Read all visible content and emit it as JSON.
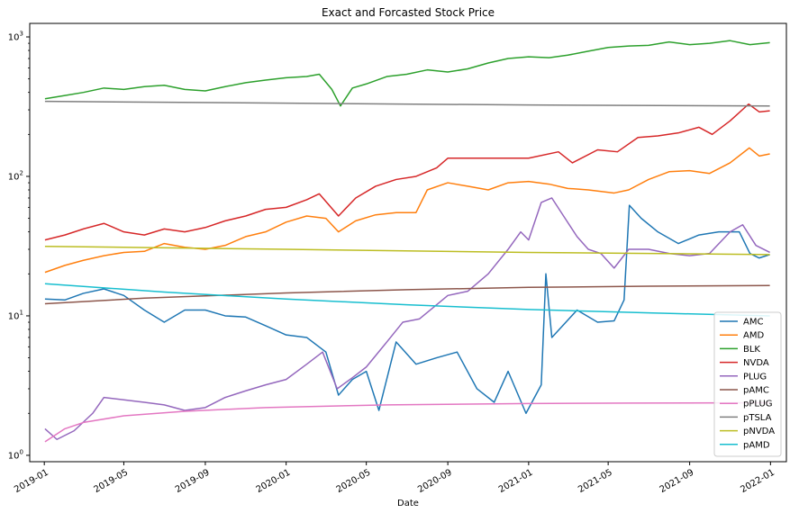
{
  "chart_data": {
    "type": "line",
    "title": "Exact and Forcasted Stock Price",
    "xlabel": "Date",
    "ylabel": "",
    "yscale": "log",
    "xlim": [
      "2018-12-10",
      "2022-01-25"
    ],
    "ylim": [
      0.9,
      1250
    ],
    "grid": false,
    "legend_placement": "bottom-right",
    "x_ticks": [
      "2019-01",
      "2019-05",
      "2019-09",
      "2020-01",
      "2020-05",
      "2020-09",
      "2021-01",
      "2021-05",
      "2021-09",
      "2022-01"
    ],
    "y_ticks": [
      {
        "value": 1,
        "base": "10",
        "exp": "0"
      },
      {
        "value": 10,
        "base": "10",
        "exp": "1"
      },
      {
        "value": 100,
        "base": "10",
        "exp": "2"
      },
      {
        "value": 1000,
        "base": "10",
        "exp": "3"
      }
    ],
    "series": [
      {
        "name": "AMC",
        "color": "#1f77b4",
        "points": [
          [
            "2019-01-02",
            13.2
          ],
          [
            "2019-02-01",
            13.0
          ],
          [
            "2019-03-01",
            14.5
          ],
          [
            "2019-04-01",
            15.6
          ],
          [
            "2019-05-01",
            14.0
          ],
          [
            "2019-06-01",
            11.0
          ],
          [
            "2019-07-01",
            9.0
          ],
          [
            "2019-08-01",
            11.0
          ],
          [
            "2019-09-01",
            11.0
          ],
          [
            "2019-10-01",
            10.0
          ],
          [
            "2019-11-01",
            9.8
          ],
          [
            "2019-12-01",
            8.5
          ],
          [
            "2020-01-01",
            7.3
          ],
          [
            "2020-02-01",
            7.0
          ],
          [
            "2020-03-01",
            5.5
          ],
          [
            "2020-03-20",
            2.7
          ],
          [
            "2020-04-10",
            3.5
          ],
          [
            "2020-05-01",
            4.0
          ],
          [
            "2020-05-20",
            2.1
          ],
          [
            "2020-06-15",
            6.5
          ],
          [
            "2020-07-15",
            4.5
          ],
          [
            "2020-08-15",
            5.0
          ],
          [
            "2020-09-15",
            5.5
          ],
          [
            "2020-10-15",
            3.0
          ],
          [
            "2020-11-10",
            2.4
          ],
          [
            "2020-12-01",
            4.0
          ],
          [
            "2020-12-28",
            2.0
          ],
          [
            "2021-01-20",
            3.2
          ],
          [
            "2021-01-27",
            20.0
          ],
          [
            "2021-02-05",
            7.0
          ],
          [
            "2021-03-15",
            11.0
          ],
          [
            "2021-04-15",
            9.0
          ],
          [
            "2021-05-10",
            9.2
          ],
          [
            "2021-05-25",
            13.0
          ],
          [
            "2021-06-02",
            62.0
          ],
          [
            "2021-06-20",
            50.0
          ],
          [
            "2021-07-15",
            40.0
          ],
          [
            "2021-08-15",
            33.0
          ],
          [
            "2021-09-15",
            38.0
          ],
          [
            "2021-10-15",
            40.0
          ],
          [
            "2021-11-15",
            40.0
          ],
          [
            "2021-12-01",
            28.0
          ],
          [
            "2021-12-15",
            26.0
          ],
          [
            "2021-12-31",
            27.5
          ]
        ]
      },
      {
        "name": "AMD",
        "color": "#ff7f0e",
        "points": [
          [
            "2019-01-02",
            20.5
          ],
          [
            "2019-02-01",
            23.0
          ],
          [
            "2019-03-01",
            25.0
          ],
          [
            "2019-04-01",
            27.0
          ],
          [
            "2019-05-01",
            28.5
          ],
          [
            "2019-06-01",
            29.0
          ],
          [
            "2019-07-01",
            33.0
          ],
          [
            "2019-08-01",
            31.0
          ],
          [
            "2019-09-01",
            30.0
          ],
          [
            "2019-10-01",
            32.0
          ],
          [
            "2019-11-01",
            37.0
          ],
          [
            "2019-12-01",
            40.0
          ],
          [
            "2020-01-01",
            47.0
          ],
          [
            "2020-02-01",
            52.0
          ],
          [
            "2020-03-01",
            50.0
          ],
          [
            "2020-03-20",
            40.0
          ],
          [
            "2020-04-15",
            48.0
          ],
          [
            "2020-05-15",
            53.0
          ],
          [
            "2020-06-15",
            55.0
          ],
          [
            "2020-07-15",
            55.0
          ],
          [
            "2020-08-01",
            80.0
          ],
          [
            "2020-09-01",
            90.0
          ],
          [
            "2020-10-01",
            85.0
          ],
          [
            "2020-11-01",
            80.0
          ],
          [
            "2020-12-01",
            90.0
          ],
          [
            "2021-01-01",
            92.0
          ],
          [
            "2021-02-01",
            88.0
          ],
          [
            "2021-03-01",
            82.0
          ],
          [
            "2021-04-01",
            80.0
          ],
          [
            "2021-05-10",
            76.0
          ],
          [
            "2021-06-01",
            80.0
          ],
          [
            "2021-07-01",
            95.0
          ],
          [
            "2021-08-01",
            108.0
          ],
          [
            "2021-09-01",
            110.0
          ],
          [
            "2021-10-01",
            105.0
          ],
          [
            "2021-11-01",
            125.0
          ],
          [
            "2021-11-30",
            160.0
          ],
          [
            "2021-12-15",
            140.0
          ],
          [
            "2021-12-31",
            145.0
          ]
        ]
      },
      {
        "name": "BLK",
        "color": "#2ca02c",
        "points": [
          [
            "2019-01-02",
            360.0
          ],
          [
            "2019-02-01",
            380.0
          ],
          [
            "2019-03-01",
            400.0
          ],
          [
            "2019-04-01",
            430.0
          ],
          [
            "2019-05-01",
            420.0
          ],
          [
            "2019-06-01",
            440.0
          ],
          [
            "2019-07-01",
            450.0
          ],
          [
            "2019-08-01",
            420.0
          ],
          [
            "2019-09-01",
            410.0
          ],
          [
            "2019-10-01",
            440.0
          ],
          [
            "2019-11-01",
            470.0
          ],
          [
            "2019-12-01",
            490.0
          ],
          [
            "2020-01-01",
            510.0
          ],
          [
            "2020-02-01",
            520.0
          ],
          [
            "2020-02-20",
            540.0
          ],
          [
            "2020-03-10",
            420.0
          ],
          [
            "2020-03-23",
            320.0
          ],
          [
            "2020-04-10",
            430.0
          ],
          [
            "2020-05-01",
            460.0
          ],
          [
            "2020-06-01",
            520.0
          ],
          [
            "2020-07-01",
            540.0
          ],
          [
            "2020-08-01",
            580.0
          ],
          [
            "2020-09-01",
            560.0
          ],
          [
            "2020-10-01",
            590.0
          ],
          [
            "2020-11-01",
            650.0
          ],
          [
            "2020-12-01",
            700.0
          ],
          [
            "2021-01-01",
            720.0
          ],
          [
            "2021-02-01",
            710.0
          ],
          [
            "2021-03-01",
            740.0
          ],
          [
            "2021-04-01",
            790.0
          ],
          [
            "2021-05-01",
            840.0
          ],
          [
            "2021-06-01",
            860.0
          ],
          [
            "2021-07-01",
            870.0
          ],
          [
            "2021-08-01",
            920.0
          ],
          [
            "2021-09-01",
            880.0
          ],
          [
            "2021-10-01",
            900.0
          ],
          [
            "2021-11-01",
            940.0
          ],
          [
            "2021-12-01",
            880.0
          ],
          [
            "2021-12-31",
            910.0
          ]
        ]
      },
      {
        "name": "NVDA",
        "color": "#d62728",
        "points": [
          [
            "2019-01-02",
            35.0
          ],
          [
            "2019-02-01",
            38.0
          ],
          [
            "2019-03-01",
            42.0
          ],
          [
            "2019-04-01",
            46.0
          ],
          [
            "2019-05-01",
            40.0
          ],
          [
            "2019-06-01",
            38.0
          ],
          [
            "2019-07-01",
            42.0
          ],
          [
            "2019-08-01",
            40.0
          ],
          [
            "2019-09-01",
            43.0
          ],
          [
            "2019-10-01",
            48.0
          ],
          [
            "2019-11-01",
            52.0
          ],
          [
            "2019-12-01",
            58.0
          ],
          [
            "2020-01-01",
            60.0
          ],
          [
            "2020-02-01",
            68.0
          ],
          [
            "2020-02-20",
            75.0
          ],
          [
            "2020-03-20",
            52.0
          ],
          [
            "2020-04-15",
            70.0
          ],
          [
            "2020-05-15",
            85.0
          ],
          [
            "2020-06-15",
            95.0
          ],
          [
            "2020-07-15",
            100.0
          ],
          [
            "2020-08-15",
            115.0
          ],
          [
            "2020-09-01",
            135.0
          ],
          [
            "2020-10-01",
            135.0
          ],
          [
            "2020-11-01",
            135.0
          ],
          [
            "2020-12-01",
            135.0
          ],
          [
            "2021-01-01",
            135.0
          ],
          [
            "2021-02-15",
            150.0
          ],
          [
            "2021-03-08",
            125.0
          ],
          [
            "2021-04-15",
            155.0
          ],
          [
            "2021-05-15",
            150.0
          ],
          [
            "2021-06-15",
            190.0
          ],
          [
            "2021-07-15",
            195.0
          ],
          [
            "2021-08-15",
            205.0
          ],
          [
            "2021-09-15",
            225.0
          ],
          [
            "2021-10-05",
            200.0
          ],
          [
            "2021-11-01",
            250.0
          ],
          [
            "2021-11-29",
            330.0
          ],
          [
            "2021-12-15",
            290.0
          ],
          [
            "2021-12-31",
            295.0
          ]
        ]
      },
      {
        "name": "PLUG",
        "color": "#9467bd",
        "points": [
          [
            "2019-01-02",
            1.55
          ],
          [
            "2019-01-20",
            1.3
          ],
          [
            "2019-02-15",
            1.5
          ],
          [
            "2019-03-15",
            2.0
          ],
          [
            "2019-04-01",
            2.6
          ],
          [
            "2019-05-01",
            2.5
          ],
          [
            "2019-06-01",
            2.4
          ],
          [
            "2019-07-01",
            2.3
          ],
          [
            "2019-08-01",
            2.1
          ],
          [
            "2019-09-01",
            2.2
          ],
          [
            "2019-10-01",
            2.6
          ],
          [
            "2019-11-01",
            2.9
          ],
          [
            "2019-12-01",
            3.2
          ],
          [
            "2020-01-01",
            3.5
          ],
          [
            "2020-02-01",
            4.5
          ],
          [
            "2020-02-25",
            5.5
          ],
          [
            "2020-03-18",
            3.0
          ],
          [
            "2020-04-10",
            3.6
          ],
          [
            "2020-05-01",
            4.3
          ],
          [
            "2020-06-01",
            6.5
          ],
          [
            "2020-06-25",
            9.0
          ],
          [
            "2020-07-20",
            9.5
          ],
          [
            "2020-08-15",
            12.0
          ],
          [
            "2020-09-01",
            14.0
          ],
          [
            "2020-10-01",
            15.0
          ],
          [
            "2020-11-01",
            20.0
          ],
          [
            "2020-12-01",
            30.0
          ],
          [
            "2020-12-20",
            40.0
          ],
          [
            "2021-01-01",
            35.0
          ],
          [
            "2021-01-20",
            65.0
          ],
          [
            "2021-02-05",
            70.0
          ],
          [
            "2021-02-25",
            50.0
          ],
          [
            "2021-03-15",
            37.0
          ],
          [
            "2021-04-01",
            30.0
          ],
          [
            "2021-04-20",
            28.0
          ],
          [
            "2021-05-10",
            22.0
          ],
          [
            "2021-06-01",
            30.0
          ],
          [
            "2021-07-01",
            30.0
          ],
          [
            "2021-08-01",
            28.0
          ],
          [
            "2021-09-01",
            27.0
          ],
          [
            "2021-10-01",
            28.0
          ],
          [
            "2021-11-01",
            40.0
          ],
          [
            "2021-11-20",
            45.0
          ],
          [
            "2021-12-10",
            32.0
          ],
          [
            "2021-12-31",
            28.5
          ]
        ]
      },
      {
        "name": "pAMC",
        "color": "#8c564b",
        "points": [
          [
            "2019-01-02",
            12.2
          ],
          [
            "2019-06-01",
            13.4
          ],
          [
            "2020-01-01",
            14.6
          ],
          [
            "2020-07-01",
            15.4
          ],
          [
            "2021-01-01",
            16.0
          ],
          [
            "2021-07-01",
            16.3
          ],
          [
            "2021-12-31",
            16.5
          ]
        ]
      },
      {
        "name": "pPLUG",
        "color": "#e377c2",
        "points": [
          [
            "2019-01-02",
            1.25
          ],
          [
            "2019-02-01",
            1.55
          ],
          [
            "2019-03-01",
            1.72
          ],
          [
            "2019-05-01",
            1.92
          ],
          [
            "2019-08-01",
            2.07
          ],
          [
            "2019-12-01",
            2.2
          ],
          [
            "2020-06-01",
            2.3
          ],
          [
            "2021-01-01",
            2.35
          ],
          [
            "2021-06-01",
            2.37
          ],
          [
            "2021-12-31",
            2.38
          ]
        ]
      },
      {
        "name": "pTSLA",
        "color": "#7f7f7f",
        "points": [
          [
            "2019-01-02",
            345.0
          ],
          [
            "2020-01-01",
            335.0
          ],
          [
            "2021-01-01",
            325.0
          ],
          [
            "2021-12-31",
            320.0
          ]
        ]
      },
      {
        "name": "pNVDA",
        "color": "#bcbd22",
        "points": [
          [
            "2019-01-02",
            31.5
          ],
          [
            "2020-01-01",
            30.0
          ],
          [
            "2021-01-01",
            28.5
          ],
          [
            "2021-12-31",
            27.5
          ]
        ]
      },
      {
        "name": "pAMD",
        "color": "#17becf",
        "points": [
          [
            "2019-01-02",
            17.0
          ],
          [
            "2019-07-01",
            14.8
          ],
          [
            "2020-01-01",
            13.2
          ],
          [
            "2020-07-01",
            12.0
          ],
          [
            "2021-01-01",
            11.1
          ],
          [
            "2021-07-01",
            10.5
          ],
          [
            "2021-12-31",
            10.0
          ]
        ]
      }
    ]
  }
}
